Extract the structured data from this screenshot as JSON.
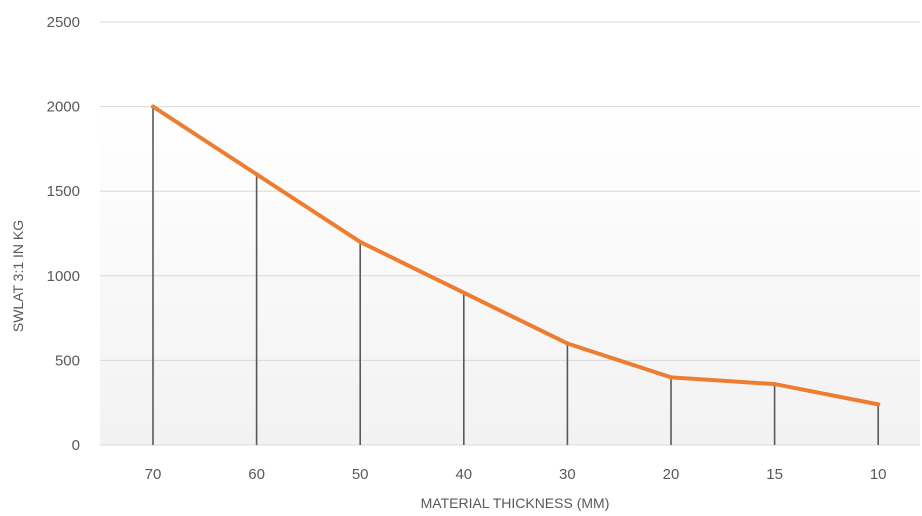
{
  "chart_data": {
    "type": "line",
    "categories": [
      "70",
      "60",
      "50",
      "40",
      "30",
      "20",
      "15",
      "10"
    ],
    "values": [
      2000,
      1600,
      1200,
      900,
      600,
      400,
      360,
      240
    ],
    "xlabel": "MATERIAL THICKNESS (MM)",
    "ylabel": "SWLAT 3:1 IN KG",
    "ylim": [
      0,
      2500
    ],
    "yticks": [
      "0",
      "500",
      "1000",
      "1500",
      "2000",
      "2500"
    ],
    "grid": true,
    "drop_lines": true,
    "colors": {
      "line": "#ED7D31",
      "drop_line": "#595959",
      "grid": "#D9D9D9",
      "axis_text": "#595959"
    }
  }
}
